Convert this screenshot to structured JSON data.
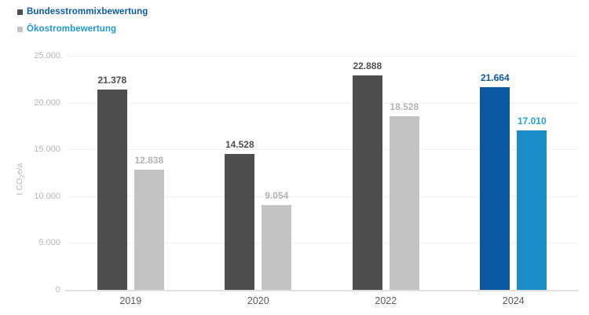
{
  "legend": {
    "items": [
      {
        "label": "Bundesstrommixbewertung",
        "marker_color": "#4e4e4e",
        "text_color": "#0b5aa5"
      },
      {
        "label": "Ökostrombewertung",
        "marker_color": "#c3c3c3",
        "text_color": "#2196d2"
      }
    ]
  },
  "chart_data": {
    "type": "bar",
    "title": "",
    "categories": [
      "2019",
      "2020",
      "2022",
      "2024"
    ],
    "series": [
      {
        "name": "Bundesstrommixbewertung",
        "values": [
          21378,
          14528,
          22888,
          21664
        ],
        "value_labels": [
          "21.378",
          "14.528",
          "22.888",
          "21.664"
        ],
        "bar_colors": [
          "#4e4e4e",
          "#4e4e4e",
          "#4e4e4e",
          "#0a58a2"
        ],
        "label_colors": [
          "#4e4e4e",
          "#4e4e4e",
          "#4e4e4e",
          "#0b5aa5"
        ]
      },
      {
        "name": "Ökostrombewertung",
        "values": [
          12838,
          9054,
          18528,
          17010
        ],
        "value_labels": [
          "12.838",
          "9.054",
          "18.528",
          "17.010"
        ],
        "bar_colors": [
          "#c3c3c3",
          "#c3c3c3",
          "#c3c3c3",
          "#1d8dc8"
        ],
        "label_colors": [
          "#b2b2b2",
          "#b2b2b2",
          "#b2b2b2",
          "#21a0dc"
        ]
      }
    ],
    "xlabel": "",
    "ylabel": "t CO2e/a",
    "ylabel_parts": {
      "pre": "t CO",
      "sub": "2",
      "post": "e/a"
    },
    "ylim": [
      0,
      25000
    ],
    "yticks": [
      0,
      5000,
      10000,
      15000,
      20000,
      25000
    ],
    "ytick_labels": [
      "0",
      "5.000",
      "10.000",
      "15.000",
      "20.000",
      "25.000"
    ],
    "grid": "horizontal",
    "legend_position": "top-left"
  }
}
